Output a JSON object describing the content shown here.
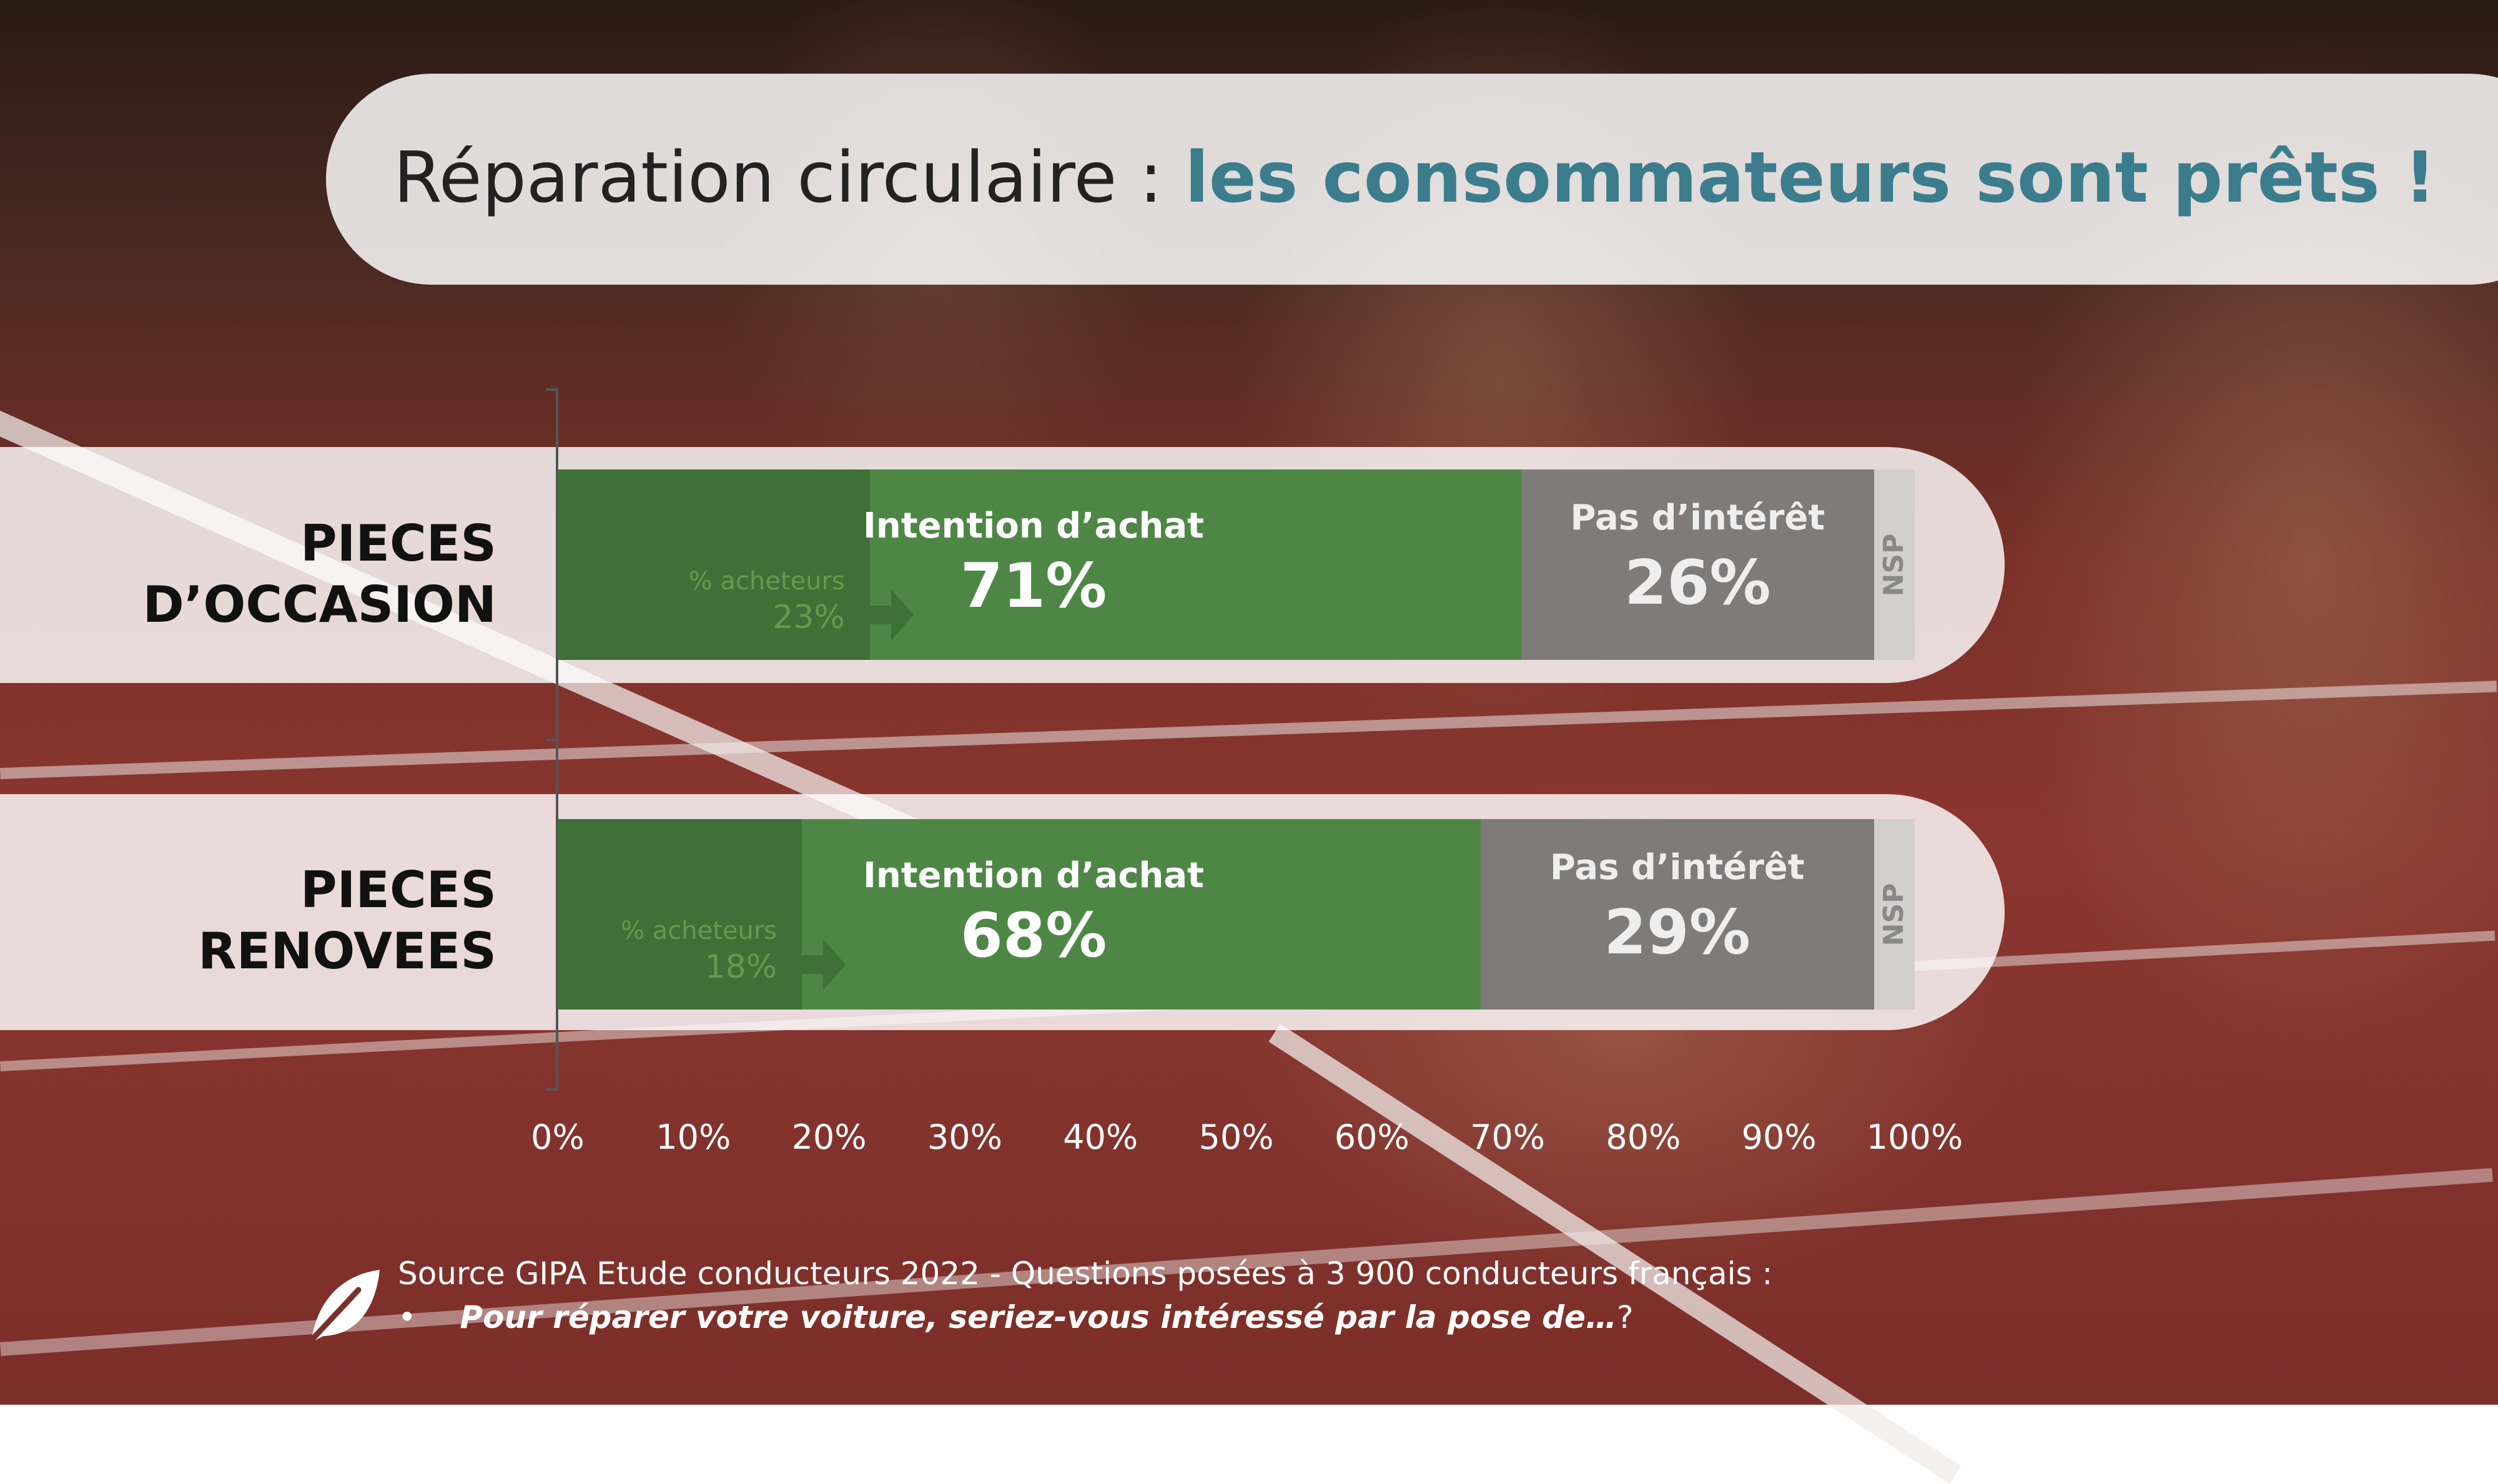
{
  "title": {
    "part1": "Réparation circulaire :",
    "part2": "les consommateurs sont prêts !"
  },
  "colors": {
    "intention": "#4e8745",
    "buyers": "#3e7038",
    "no_interest": "#7e7b79",
    "nsp": "#d2cfcd",
    "title_accent": "#3b7d8c"
  },
  "chart_data": {
    "type": "bar",
    "orientation": "horizontal",
    "stacked": true,
    "xlim": [
      0,
      100
    ],
    "x_ticks": [
      "0%",
      "10%",
      "20%",
      "30%",
      "40%",
      "50%",
      "60%",
      "70%",
      "80%",
      "90%",
      "100%"
    ],
    "rows": [
      {
        "label_line1": "PIECES",
        "label_line2": "D’OCCASION",
        "buyers_label": "% acheteurs",
        "buyers_value": 23,
        "buyers_text": "23%",
        "intention_label": "Intention d’achat",
        "intention_value": 71,
        "intention_text": "71%",
        "no_interest_label": "Pas d’intérêt",
        "no_interest_value": 26,
        "no_interest_text": "26%",
        "nsp_label": "NSP",
        "nsp_value": 3
      },
      {
        "label_line1": "PIECES",
        "label_line2": "RENOVEES",
        "buyers_label": "% acheteurs",
        "buyers_value": 18,
        "buyers_text": "18%",
        "intention_label": "Intention d’achat",
        "intention_value": 68,
        "intention_text": "68%",
        "no_interest_label": "Pas d’intérêt",
        "no_interest_value": 29,
        "no_interest_text": "29%",
        "nsp_label": "NSP",
        "nsp_value": 3
      }
    ]
  },
  "footer": {
    "source": "Source GIPA Etude conducteurs 2022 - Questions posées à 3 900 conducteurs français :",
    "bullet": "•",
    "question": "Pour réparer votre voiture, seriez-vous intéressé par la pose de…",
    "question_end": "?"
  },
  "icons": {
    "footer_icon": "leaf-icon"
  }
}
